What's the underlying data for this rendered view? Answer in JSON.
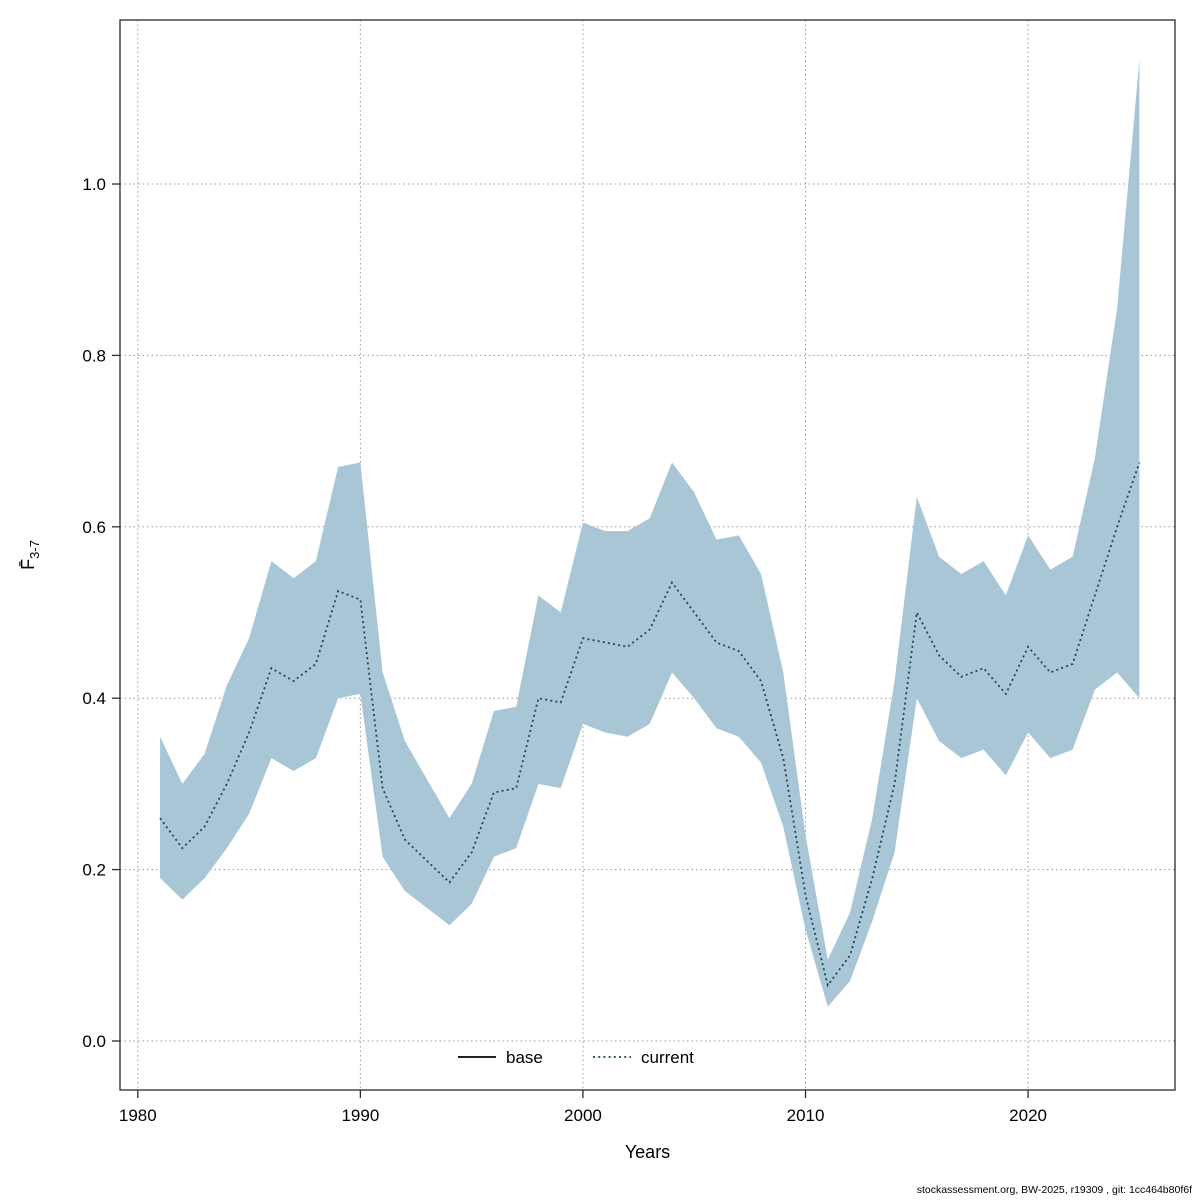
{
  "footer": {
    "text": "stockassessment.org, BW-2025, r19309 , git: 1cc464b80f6f"
  },
  "chart_data": {
    "type": "area",
    "title": "",
    "xlabel": "Years",
    "ylabel": "F̄3-7",
    "ylabel_main": "F̄",
    "ylabel_sub": "3-7",
    "x_ticks": [
      1980,
      1990,
      2000,
      2010,
      2020
    ],
    "y_ticks": [
      0.0,
      0.2,
      0.4,
      0.6,
      0.8,
      1.0
    ],
    "xlim": [
      1979.2,
      2026.6
    ],
    "ylim": [
      -0.0572,
      1.1914
    ],
    "grid": "dotted",
    "legend_position": "bottom-inside",
    "legend": [
      {
        "label": "base",
        "style": "solid",
        "color": "#000000"
      },
      {
        "label": "current",
        "style": "dotted",
        "color": "#16485c"
      }
    ],
    "colors": {
      "band": "#a9c6d6",
      "line": "#16485c",
      "grid": "#9a9a9a",
      "frame": "#2b2b2b",
      "text": "#000000"
    },
    "x": [
      1981,
      1982,
      1983,
      1984,
      1985,
      1986,
      1987,
      1988,
      1989,
      1990,
      1991,
      1992,
      1993,
      1994,
      1995,
      1996,
      1997,
      1998,
      1999,
      2000,
      2001,
      2002,
      2003,
      2004,
      2005,
      2006,
      2007,
      2008,
      2009,
      2010,
      2011,
      2012,
      2013,
      2014,
      2015,
      2016,
      2017,
      2018,
      2019,
      2020,
      2021,
      2022,
      2023,
      2024,
      2025
    ],
    "series": [
      {
        "name": "current",
        "values": [
          0.26,
          0.225,
          0.25,
          0.3,
          0.36,
          0.435,
          0.42,
          0.44,
          0.525,
          0.515,
          0.295,
          0.235,
          0.21,
          0.185,
          0.22,
          0.29,
          0.295,
          0.4,
          0.395,
          0.47,
          0.465,
          0.46,
          0.48,
          0.535,
          0.5,
          0.465,
          0.455,
          0.42,
          0.33,
          0.17,
          0.065,
          0.1,
          0.19,
          0.3,
          0.5,
          0.45,
          0.425,
          0.435,
          0.405,
          0.46,
          0.43,
          0.44,
          0.52,
          0.6,
          0.675
        ]
      }
    ],
    "band": {
      "upper": [
        0.355,
        0.3,
        0.335,
        0.415,
        0.47,
        0.56,
        0.54,
        0.56,
        0.67,
        0.675,
        0.43,
        0.35,
        0.305,
        0.26,
        0.3,
        0.385,
        0.39,
        0.52,
        0.5,
        0.605,
        0.595,
        0.595,
        0.61,
        0.675,
        0.64,
        0.585,
        0.59,
        0.545,
        0.43,
        0.24,
        0.095,
        0.15,
        0.26,
        0.42,
        0.635,
        0.565,
        0.545,
        0.56,
        0.52,
        0.59,
        0.55,
        0.565,
        0.68,
        0.855,
        1.145
      ],
      "lower": [
        0.19,
        0.165,
        0.19,
        0.225,
        0.265,
        0.33,
        0.315,
        0.33,
        0.4,
        0.405,
        0.215,
        0.175,
        0.155,
        0.135,
        0.16,
        0.215,
        0.225,
        0.3,
        0.295,
        0.37,
        0.36,
        0.355,
        0.37,
        0.43,
        0.4,
        0.365,
        0.355,
        0.325,
        0.25,
        0.13,
        0.04,
        0.07,
        0.14,
        0.22,
        0.4,
        0.35,
        0.33,
        0.34,
        0.31,
        0.36,
        0.33,
        0.34,
        0.41,
        0.43,
        0.4
      ]
    }
  }
}
